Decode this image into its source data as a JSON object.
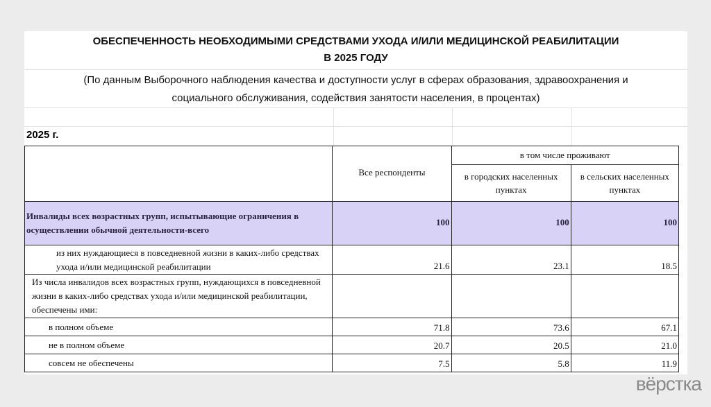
{
  "title": {
    "line1": "ОБЕСПЕЧЕННОСТЬ НЕОБХОДИМЫМИ СРЕДСТВАМИ УХОДА И/ИЛИ МЕДИЦИНСКОЙ РЕАБИЛИТАЦИИ",
    "line2": "В 2025 ГОДУ"
  },
  "subtitle": {
    "line1": "(По данным Выборочного наблюдения качества и доступности услуг в сферах образования, здравоохранения и",
    "line2": "социального обслуживания, содействия занятости населения, в процентах)"
  },
  "year_label": "2025 г.",
  "table": {
    "headers": {
      "all": "Все респонденты",
      "group": "в том числе проживают",
      "urban": "в городских населенных пунктах",
      "rural": "в сельских населенных пунктах"
    },
    "rows": [
      {
        "label": "Инвалиды всех возрастных групп,  испытывающие ограничения в осуществлении обычной деятельности-всего",
        "all": "100",
        "urban": "100",
        "rural": "100"
      },
      {
        "label": "из них нуждающиеся в повседневной жизни в каких-либо средствах ухода и/или медицинской реабилитации",
        "all": "21.6",
        "urban": "23.1",
        "rural": "18.5"
      },
      {
        "label": "Из числа инвалидов всех возрастных групп, нуждающихся в повседневной жизни в каких-либо средствах ухода и/или медицинской реабилитации, обеспечены ими:",
        "all": "",
        "urban": "",
        "rural": ""
      },
      {
        "label": "в полном объеме",
        "all": "71.8",
        "urban": "73.6",
        "rural": "67.1"
      },
      {
        "label": "не в полном объеме",
        "all": "20.7",
        "urban": "20.5",
        "rural": "21.0"
      },
      {
        "label": "совсем не обеспечены",
        "all": "7.5",
        "urban": "5.8",
        "rural": "11.9"
      }
    ]
  },
  "watermark": "вёрстка",
  "colors": {
    "highlight": "#d9d2f7",
    "background": "#ececec"
  }
}
